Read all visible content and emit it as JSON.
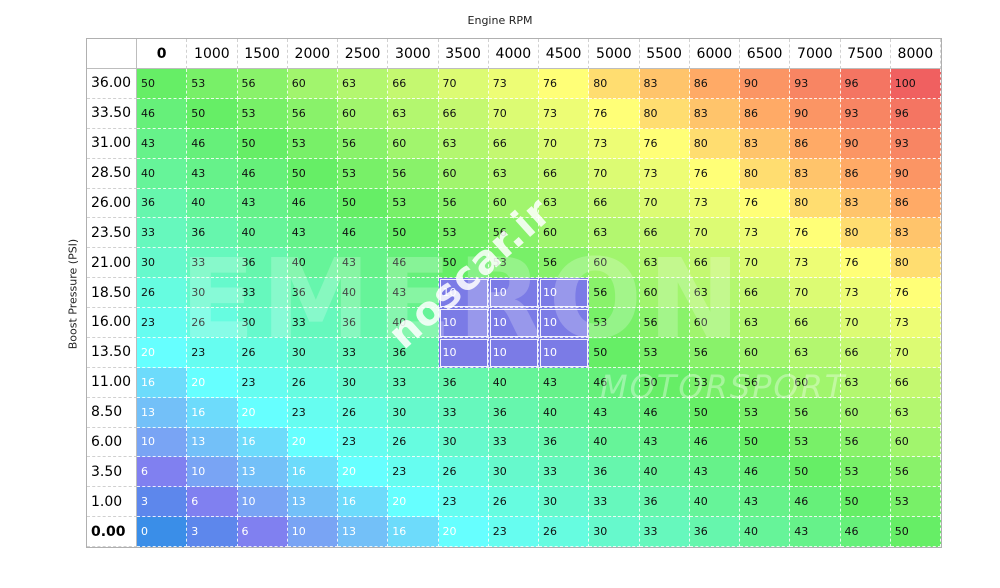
{
  "chart_data": {
    "type": "heatmap",
    "xlabel": "Engine RPM",
    "ylabel": "Boost Pressure (PSI)",
    "x": [
      "0",
      "1000",
      "1500",
      "2000",
      "2500",
      "3000",
      "3500",
      "4000",
      "4500",
      "5000",
      "5500",
      "6000",
      "6500",
      "7000",
      "7500",
      "8000"
    ],
    "y": [
      "36.00",
      "33.50",
      "31.00",
      "28.50",
      "26.00",
      "23.50",
      "21.00",
      "18.50",
      "16.00",
      "13.50",
      "11.00",
      "8.50",
      "6.00",
      "3.50",
      "1.00",
      "0.00"
    ],
    "bold_x_index": 0,
    "bold_y_index": 15,
    "values": [
      [
        50,
        53,
        56,
        60,
        63,
        66,
        70,
        73,
        76,
        80,
        83,
        86,
        90,
        93,
        96,
        100
      ],
      [
        46,
        50,
        53,
        56,
        60,
        63,
        66,
        70,
        73,
        76,
        80,
        83,
        86,
        90,
        93,
        96
      ],
      [
        43,
        46,
        50,
        53,
        56,
        60,
        63,
        66,
        70,
        73,
        76,
        80,
        83,
        86,
        90,
        93
      ],
      [
        40,
        43,
        46,
        50,
        53,
        56,
        60,
        63,
        66,
        70,
        73,
        76,
        80,
        83,
        86,
        90
      ],
      [
        36,
        40,
        43,
        46,
        50,
        53,
        56,
        60,
        63,
        66,
        70,
        73,
        76,
        80,
        83,
        86
      ],
      [
        33,
        36,
        40,
        43,
        46,
        50,
        53,
        56,
        60,
        63,
        66,
        70,
        73,
        76,
        80,
        83
      ],
      [
        30,
        33,
        36,
        40,
        43,
        46,
        50,
        53,
        56,
        60,
        63,
        66,
        70,
        73,
        76,
        80
      ],
      [
        26,
        30,
        33,
        36,
        40,
        43,
        10,
        10,
        10,
        56,
        60,
        63,
        66,
        70,
        73,
        76
      ],
      [
        23,
        26,
        30,
        33,
        36,
        40,
        10,
        10,
        10,
        53,
        56,
        60,
        63,
        66,
        70,
        73
      ],
      [
        20,
        23,
        26,
        30,
        33,
        36,
        10,
        10,
        10,
        50,
        53,
        56,
        60,
        63,
        66,
        70
      ],
      [
        16,
        20,
        23,
        26,
        30,
        33,
        36,
        40,
        43,
        46,
        50,
        53,
        56,
        60,
        63,
        66
      ],
      [
        13,
        16,
        20,
        23,
        26,
        30,
        33,
        36,
        40,
        43,
        46,
        50,
        53,
        56,
        60,
        63
      ],
      [
        10,
        13,
        16,
        20,
        23,
        26,
        30,
        33,
        36,
        40,
        43,
        46,
        50,
        53,
        56,
        60
      ],
      [
        6,
        10,
        13,
        16,
        20,
        23,
        26,
        30,
        33,
        36,
        40,
        43,
        46,
        50,
        53,
        56
      ],
      [
        3,
        6,
        10,
        13,
        16,
        20,
        23,
        26,
        30,
        33,
        36,
        40,
        43,
        46,
        50,
        53
      ],
      [
        0,
        3,
        6,
        10,
        13,
        16,
        20,
        23,
        26,
        30,
        33,
        36,
        40,
        43,
        46,
        50
      ]
    ],
    "selection": {
      "rows": [
        7,
        9
      ],
      "cols": [
        6,
        8
      ]
    },
    "colors": {
      "min": "#3a8ee8",
      "low": "#8080f0",
      "cyan": "#66ffff",
      "green": "#66ee66",
      "yellow": "#ffff77",
      "orange": "#ffaa66",
      "max": "#f06060",
      "selection": "#7b7be6"
    }
  },
  "watermarks": {
    "site": "noscar.ir",
    "brand": "EMERON",
    "sub": "MOTORSPORT"
  }
}
